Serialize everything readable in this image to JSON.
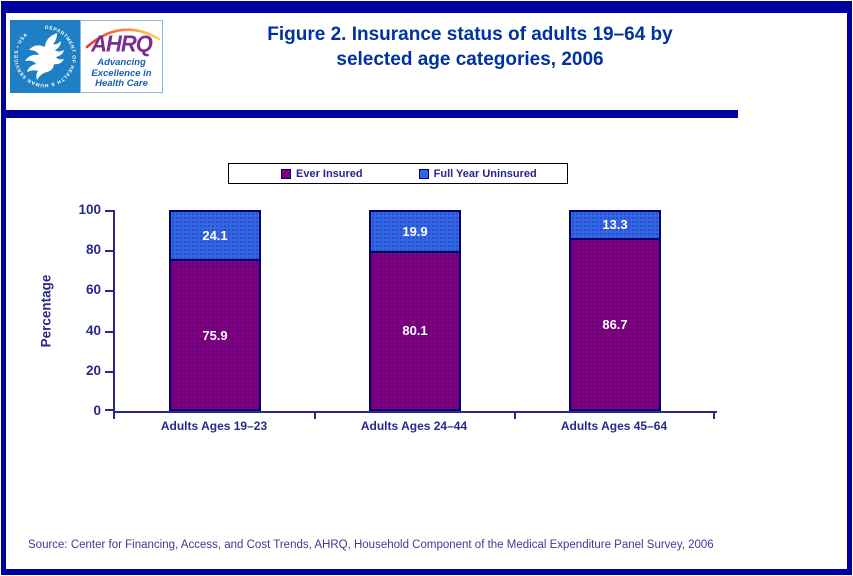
{
  "header": {
    "hhs_ring_text": "DEPARTMENT OF HEALTH & HUMAN SERVICES • USA",
    "ahrq_acronym": "AHRQ",
    "ahrq_tagline_line1": "Advancing",
    "ahrq_tagline_line2": "Excellence in",
    "ahrq_tagline_line3": "Health Care",
    "title_line1": "Figure 2. Insurance status of adults 19–64 by",
    "title_line2": "selected age categories, 2006"
  },
  "chart_data": {
    "type": "bar",
    "stacked": true,
    "categories": [
      "Adults Ages 19–23",
      "Adults Ages 24–44",
      "Adults Ages 45–64"
    ],
    "series": [
      {
        "name": "Ever Insured",
        "color": "#7D0080",
        "values": [
          75.9,
          80.1,
          86.7
        ]
      },
      {
        "name": "Full Year Uninsured",
        "color": "#3366E6",
        "values": [
          24.1,
          19.9,
          13.3
        ]
      }
    ],
    "title": "Figure 2. Insurance status of adults 19–64 by selected age categories, 2006",
    "xlabel": "",
    "ylabel": "Percentage",
    "ylim": [
      0,
      100
    ],
    "yticks": [
      0,
      20,
      40,
      60,
      80,
      100
    ],
    "legend_position": "top-center",
    "grid": false,
    "value_labels_shown": true
  },
  "footer": {
    "source": "Source: Center for Financing, Access, and Cost Trends, AHRQ, Household Component of the Medical Expenditure Panel Survey, 2006"
  },
  "colors": {
    "frame": "#0000A0",
    "title_text": "#0033A0",
    "axis_text": "#29298C",
    "bar_border": "#00006E",
    "hhs_logo_blue": "#1F7FC4",
    "ahrq_purple": "#7B2E90",
    "ahrq_tagline_blue": "#1C5FAE",
    "source_text": "#3C3C96"
  }
}
